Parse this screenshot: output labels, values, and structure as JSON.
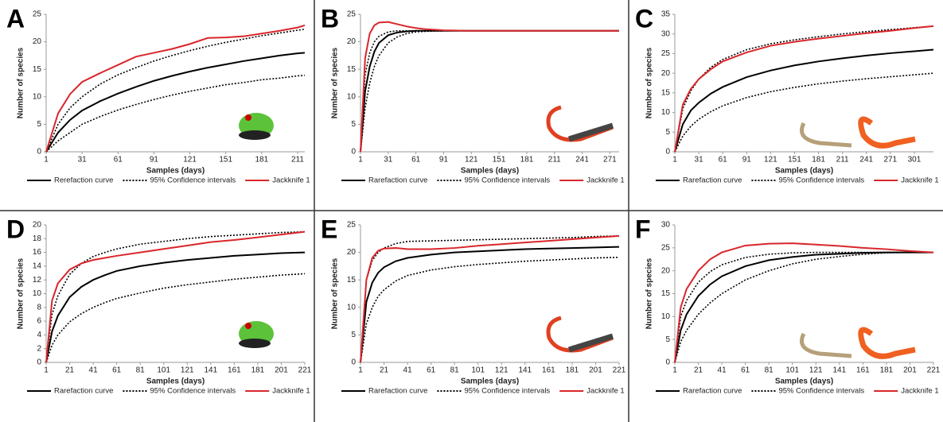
{
  "chart_data": [
    {
      "type": "line",
      "label": "A",
      "xlabel": "Samples (days)",
      "ylabel": "Number of species",
      "x": [
        1,
        11,
        21,
        31,
        46,
        61,
        76,
        91,
        106,
        121,
        136,
        151,
        166,
        181,
        196,
        211,
        217
      ],
      "xlim": [
        1,
        217
      ],
      "xticks": [
        1,
        31,
        61,
        91,
        121,
        151,
        181,
        211
      ],
      "ylim": [
        0,
        25
      ],
      "yticks": [
        0,
        5,
        10,
        15,
        20,
        25
      ],
      "series": [
        {
          "name": "Rerefaction curve",
          "color": "#000000",
          "style": "solid",
          "values": [
            0,
            3.5,
            5.8,
            7.5,
            9.2,
            10.6,
            11.8,
            12.9,
            13.8,
            14.6,
            15.3,
            15.9,
            16.5,
            17,
            17.5,
            17.9,
            18
          ]
        },
        {
          "name": "95% Confidence intervals",
          "color": "#000000",
          "style": "dotted",
          "upper": [
            0,
            5,
            8,
            10,
            12.3,
            14,
            15.3,
            16.5,
            17.5,
            18.4,
            19.2,
            19.9,
            20.5,
            21.1,
            21.6,
            22.1,
            22.3
          ],
          "lower": [
            0,
            2,
            3.5,
            5,
            6.4,
            7.6,
            8.6,
            9.5,
            10.3,
            11,
            11.6,
            12.2,
            12.6,
            13.1,
            13.4,
            13.8,
            13.9
          ]
        },
        {
          "name": "Jackknife 1",
          "color": "#d9262b",
          "style": "solid",
          "values": [
            0,
            7,
            10.5,
            12.7,
            14.3,
            15.8,
            17.3,
            18,
            18.7,
            19.6,
            20.7,
            20.8,
            21,
            21.5,
            22,
            22.6,
            23
          ]
        }
      ]
    },
    {
      "type": "line",
      "label": "B",
      "xlabel": "Samples (days)",
      "ylabel": "Number of species",
      "x": [
        1,
        6,
        11,
        16,
        21,
        31,
        41,
        51,
        61,
        71,
        91,
        121,
        151,
        181,
        211,
        241,
        271,
        281
      ],
      "xlim": [
        1,
        281
      ],
      "xticks": [
        1,
        31,
        61,
        91,
        121,
        151,
        181,
        211,
        241,
        271
      ],
      "ylim": [
        0,
        25
      ],
      "yticks": [
        0,
        5,
        10,
        15,
        20,
        25
      ],
      "series": [
        {
          "name": "Rarefaction curve",
          "color": "#000000",
          "style": "solid",
          "values": [
            0,
            11,
            15.5,
            18.2,
            19.8,
            21.2,
            21.7,
            21.9,
            22,
            22,
            22,
            22,
            22,
            22,
            22,
            22,
            22,
            22
          ]
        },
        {
          "name": "95% Confidence intervals",
          "color": "#000000",
          "style": "dotted",
          "upper": [
            0,
            14,
            18,
            20,
            21,
            21.8,
            22,
            22,
            22,
            22,
            22,
            22,
            22,
            22,
            22,
            22,
            22,
            22
          ],
          "lower": [
            0,
            8,
            12.5,
            15.5,
            17.5,
            19.8,
            20.9,
            21.5,
            21.8,
            21.9,
            22,
            22,
            22,
            22,
            22,
            22,
            22,
            22
          ]
        },
        {
          "name": "Jackknife 1",
          "color": "#d9262b",
          "style": "solid",
          "values": [
            0,
            17,
            21.5,
            23,
            23.5,
            23.6,
            23.2,
            22.8,
            22.5,
            22.3,
            22.1,
            22,
            22,
            22,
            22,
            22,
            22,
            22
          ]
        }
      ]
    },
    {
      "type": "line",
      "label": "C",
      "xlabel": "Samples (days)",
      "ylabel": "Number of species",
      "x": [
        1,
        11,
        21,
        31,
        46,
        61,
        91,
        121,
        151,
        181,
        211,
        241,
        271,
        301,
        325
      ],
      "xlim": [
        1,
        325
      ],
      "xticks": [
        1,
        31,
        61,
        91,
        121,
        151,
        181,
        211,
        241,
        271,
        301
      ],
      "ylim": [
        0,
        35
      ],
      "yticks": [
        0,
        5,
        10,
        15,
        20,
        25,
        30,
        35
      ],
      "series": [
        {
          "name": "Rarefaction curve",
          "color": "#000000",
          "style": "solid",
          "values": [
            0,
            7,
            10.5,
            12.5,
            14.8,
            16.5,
            19,
            20.7,
            22,
            23,
            23.8,
            24.5,
            25.1,
            25.6,
            26
          ]
        },
        {
          "name": "95% Confidence intervals",
          "color": "#000000",
          "style": "dotted",
          "upper": [
            0,
            11,
            15.5,
            18.5,
            21.5,
            23.5,
            26,
            27.5,
            28.5,
            29.3,
            30,
            30.6,
            31.1,
            31.6,
            32
          ],
          "lower": [
            0,
            4,
            6.5,
            8.3,
            10.2,
            11.7,
            13.8,
            15.3,
            16.4,
            17.3,
            18,
            18.6,
            19.1,
            19.6,
            20
          ]
        },
        {
          "name": "Jackknife 1",
          "color": "#d9262b",
          "style": "solid",
          "values": [
            0,
            12,
            16,
            18.5,
            21,
            23,
            25.3,
            27,
            28,
            28.8,
            29.5,
            30.2,
            30.8,
            31.5,
            32
          ]
        }
      ]
    },
    {
      "type": "line",
      "label": "D",
      "xlabel": "Samples (days)",
      "ylabel": "Number of species",
      "x": [
        1,
        6,
        11,
        21,
        31,
        41,
        51,
        61,
        81,
        101,
        121,
        141,
        161,
        181,
        201,
        221
      ],
      "xlim": [
        1,
        221
      ],
      "xticks": [
        1,
        21,
        41,
        61,
        81,
        101,
        121,
        141,
        161,
        181,
        201,
        221
      ],
      "ylim": [
        0,
        20
      ],
      "yticks": [
        0,
        2,
        4,
        6,
        8,
        10,
        12,
        14,
        16,
        18,
        20
      ],
      "series": [
        {
          "name": "Rarefaction curve",
          "color": "#000000",
          "style": "solid",
          "values": [
            0,
            4.5,
            6.8,
            9.5,
            11,
            12,
            12.7,
            13.3,
            14,
            14.5,
            14.9,
            15.2,
            15.5,
            15.7,
            15.9,
            16
          ]
        },
        {
          "name": "95% Confidence intervals",
          "color": "#000000",
          "style": "dotted",
          "upper": [
            0,
            7,
            9.7,
            12.8,
            14.4,
            15.4,
            16,
            16.5,
            17.2,
            17.6,
            18,
            18.3,
            18.5,
            18.7,
            18.9,
            19
          ],
          "lower": [
            0,
            2.5,
            4,
            5.9,
            7.1,
            8,
            8.7,
            9.3,
            10.1,
            10.8,
            11.3,
            11.7,
            12.1,
            12.4,
            12.7,
            12.9
          ]
        },
        {
          "name": "Jackknife 1",
          "color": "#d9262b",
          "style": "solid",
          "values": [
            0,
            9,
            11.5,
            13.5,
            14.4,
            14.9,
            15.2,
            15.5,
            16,
            16.5,
            17,
            17.5,
            17.8,
            18.2,
            18.6,
            19
          ]
        }
      ]
    },
    {
      "type": "line",
      "label": "E",
      "xlabel": "Samples (days)",
      "ylabel": "Number of species",
      "x": [
        1,
        6,
        11,
        16,
        21,
        31,
        41,
        61,
        81,
        101,
        121,
        141,
        161,
        181,
        201,
        221
      ],
      "xlim": [
        1,
        221
      ],
      "xticks": [
        1,
        21,
        41,
        61,
        81,
        101,
        121,
        141,
        161,
        181,
        201,
        221
      ],
      "ylim": [
        0,
        25
      ],
      "yticks": [
        0,
        5,
        10,
        15,
        20,
        25
      ],
      "series": [
        {
          "name": "Rarefaction curve",
          "color": "#000000",
          "style": "solid",
          "values": [
            0,
            11,
            14.5,
            16.3,
            17.3,
            18.4,
            19,
            19.6,
            20,
            20.2,
            20.4,
            20.6,
            20.7,
            20.8,
            20.9,
            21
          ]
        },
        {
          "name": "95% Confidence intervals",
          "color": "#000000",
          "style": "dotted",
          "upper": [
            0,
            15,
            18.5,
            20,
            20.8,
            21.6,
            22,
            22.1,
            22.2,
            22.3,
            22.4,
            22.5,
            22.6,
            22.7,
            22.9,
            23
          ],
          "lower": [
            0,
            7,
            10,
            12,
            13.2,
            14.8,
            15.8,
            16.8,
            17.4,
            17.8,
            18.1,
            18.4,
            18.6,
            18.8,
            19,
            19.1
          ]
        },
        {
          "name": "Jackknife 1",
          "color": "#d9262b",
          "style": "solid",
          "values": [
            0,
            15,
            19,
            20.3,
            20.7,
            20.8,
            20.6,
            20.6,
            20.8,
            21.2,
            21.5,
            21.8,
            22.1,
            22.4,
            22.7,
            23
          ]
        }
      ]
    },
    {
      "type": "line",
      "label": "F",
      "xlabel": "Samples (days)",
      "ylabel": "Number of species",
      "x": [
        1,
        6,
        11,
        21,
        31,
        41,
        61,
        81,
        101,
        121,
        141,
        161,
        181,
        201,
        221
      ],
      "xlim": [
        1,
        221
      ],
      "xticks": [
        1,
        21,
        41,
        61,
        81,
        101,
        121,
        141,
        161,
        181,
        201,
        221
      ],
      "ylim": [
        0,
        30
      ],
      "yticks": [
        0,
        5,
        10,
        15,
        20,
        25,
        30
      ],
      "series": [
        {
          "name": "Rarefaction curve",
          "color": "#000000",
          "style": "solid",
          "values": [
            0,
            7,
            10.5,
            14.5,
            17,
            18.8,
            21,
            22.3,
            23,
            23.5,
            23.7,
            23.9,
            24,
            24,
            24
          ]
        },
        {
          "name": "95% Confidence intervals",
          "color": "#000000",
          "style": "dotted",
          "upper": [
            0,
            10,
            13.5,
            17.5,
            19.8,
            21.3,
            22.9,
            23.6,
            23.9,
            24,
            24,
            24,
            24,
            24,
            24
          ],
          "lower": [
            0,
            4.5,
            7,
            10.5,
            13,
            15,
            18,
            20,
            21.5,
            22.5,
            23.1,
            23.6,
            23.9,
            24,
            24
          ]
        },
        {
          "name": "Jackknife 1",
          "color": "#d9262b",
          "style": "solid",
          "values": [
            0,
            12,
            16,
            20,
            22.5,
            24,
            25.5,
            25.9,
            26,
            25.7,
            25.4,
            25,
            24.7,
            24.3,
            24
          ]
        }
      ]
    }
  ]
}
